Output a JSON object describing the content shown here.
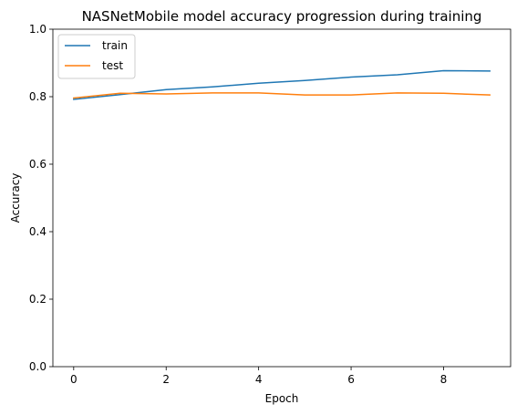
{
  "chart_data": {
    "type": "line",
    "title": "NASNetMobile model accuracy progression during training",
    "xlabel": "Epoch",
    "ylabel": "Accuracy",
    "xlim": [
      -0.45,
      9.45
    ],
    "ylim": [
      0.0,
      1.0
    ],
    "xticks": [
      0,
      2,
      4,
      6,
      8
    ],
    "xtick_labels": [
      "0",
      "2",
      "4",
      "6",
      "8"
    ],
    "yticks": [
      0.0,
      0.2,
      0.4,
      0.6,
      0.8,
      1.0
    ],
    "ytick_labels": [
      "0.0",
      "0.2",
      "0.4",
      "0.6",
      "0.8",
      "1.0"
    ],
    "grid": false,
    "legend_position": "top-left",
    "x": [
      0,
      1,
      2,
      3,
      4,
      5,
      6,
      7,
      8,
      9
    ],
    "series": [
      {
        "name": "train",
        "color": "#1f77b4",
        "values": [
          0.792,
          0.806,
          0.821,
          0.829,
          0.84,
          0.848,
          0.858,
          0.865,
          0.877,
          0.876
        ]
      },
      {
        "name": "test",
        "color": "#ff7f0e",
        "values": [
          0.796,
          0.81,
          0.808,
          0.811,
          0.811,
          0.805,
          0.805,
          0.811,
          0.81,
          0.805
        ]
      }
    ]
  }
}
